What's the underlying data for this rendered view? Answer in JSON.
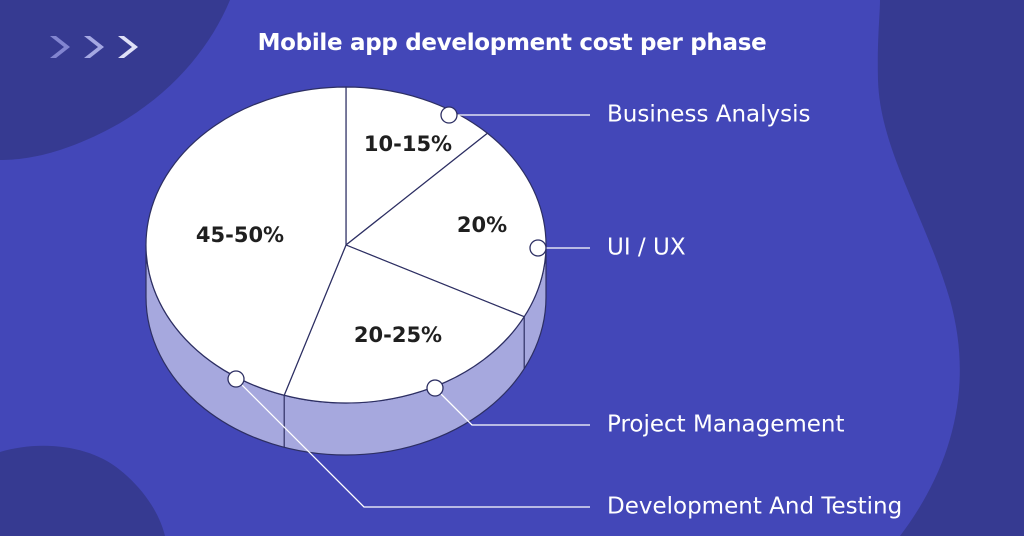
{
  "chart_data": {
    "type": "pie",
    "title": "Mobile app development cost per phase",
    "slices": [
      {
        "label": "Business Analysis",
        "value_label": "10-15%",
        "value": 12.5
      },
      {
        "label": "UI / UX",
        "value_label": "20%",
        "value": 20
      },
      {
        "label": "Project Management",
        "value_label": "20-25%",
        "value": 22.5
      },
      {
        "label": "Development And Testing",
        "value_label": "45-50%",
        "value": 45
      }
    ],
    "style": "3d-pie",
    "legend_placement": "right",
    "colors": {
      "background": "#4347b8",
      "background_shape": "#363a91",
      "slice_face": "#ffffff",
      "slice_side": "#a6a8de",
      "slice_border": "#2d2f63",
      "text": "#1f1f1f",
      "label_text": "#ffffff"
    }
  },
  "decor": {
    "chevrons_icon": "triple-chevron-right-icon"
  }
}
